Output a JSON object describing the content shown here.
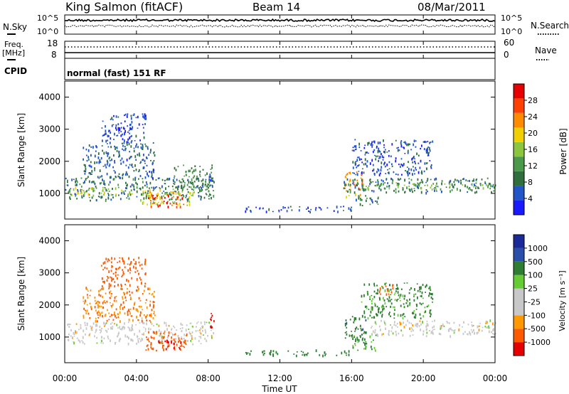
{
  "header": {
    "station": "King Salmon (fitACF)",
    "beam": "Beam 14",
    "date": "08/Mar/2011"
  },
  "status_panels": {
    "nsky_label": "N.Sky",
    "nsearch_label": "N.Search",
    "noise_ticks_left": [
      "10^5",
      "10^0"
    ],
    "noise_ticks_right": [
      "10^5",
      "10^0"
    ],
    "freq_label": "Freq.",
    "freq_unit": "[MHz]",
    "freq_ticks": [
      "18",
      "8"
    ],
    "nave_label": "Nave",
    "nave_ticks": [
      "60",
      "0"
    ],
    "cpid_label": "CPID",
    "cpid_value": "normal (fast) 151 RF"
  },
  "colors": {
    "power": [
      "#1a1aff",
      "#2255c8",
      "#2f6f3e",
      "#4a9a4a",
      "#8cc63f",
      "#f0d000",
      "#ff8c00",
      "#ff4000",
      "#e60000"
    ],
    "velocity": [
      "#e60000",
      "#ff5a00",
      "#ff9900",
      "#c8c8c8",
      "#c8c8c8",
      "#66cc33",
      "#2e7d32",
      "#2a4faa",
      "#1a2a99"
    ],
    "ground_scatter": "#c8c8c8"
  },
  "chart_data": [
    {
      "type": "heatmap",
      "panel": "power",
      "ylabel": "Slant Range [km]",
      "xlabel": "",
      "ylim": [
        200,
        4500
      ],
      "yticks": [
        "1000",
        "2000",
        "3000",
        "4000"
      ],
      "xticks": [
        "00:00",
        "04:00",
        "08:00",
        "12:00",
        "16:00",
        "20:00",
        "00:00"
      ],
      "colorbar": {
        "label": "Power [dB]",
        "ticks": [
          "4",
          "8",
          "12",
          "16",
          "20",
          "24",
          "28"
        ],
        "range": [
          0,
          30
        ]
      },
      "regions": [
        {
          "t0": 0.0,
          "t1": 8.3,
          "r0": 800,
          "r1": 1500,
          "level": 8
        },
        {
          "t0": 0.2,
          "t1": 3.8,
          "r0": 950,
          "r1": 1200,
          "level": 16
        },
        {
          "t0": 1.0,
          "t1": 5.0,
          "r0": 1500,
          "r1": 2600,
          "level": 6
        },
        {
          "t0": 2.0,
          "t1": 4.5,
          "r0": 2600,
          "r1": 3500,
          "level": 4
        },
        {
          "t0": 4.2,
          "t1": 7.2,
          "r0": 650,
          "r1": 1150,
          "level": 18
        },
        {
          "t0": 4.6,
          "t1": 6.6,
          "r0": 600,
          "r1": 1000,
          "level": 26
        },
        {
          "t0": 6.0,
          "t1": 8.2,
          "r0": 1100,
          "r1": 1900,
          "level": 10
        },
        {
          "t0": 8.0,
          "t1": 8.3,
          "r0": 1200,
          "r1": 1900,
          "level": 6
        },
        {
          "t0": 10.0,
          "t1": 16.0,
          "r0": 450,
          "r1": 620,
          "level": 5
        },
        {
          "t0": 15.6,
          "t1": 16.6,
          "r0": 900,
          "r1": 1700,
          "level": 22
        },
        {
          "t0": 15.5,
          "t1": 24.0,
          "r0": 1050,
          "r1": 1500,
          "level": 8
        },
        {
          "t0": 16.5,
          "t1": 24.0,
          "r0": 1150,
          "r1": 1350,
          "level": 13
        },
        {
          "t0": 16.0,
          "t1": 20.5,
          "r0": 1600,
          "r1": 2700,
          "level": 5
        },
        {
          "t0": 16.2,
          "t1": 17.5,
          "r0": 600,
          "r1": 950,
          "level": 9
        }
      ]
    },
    {
      "type": "heatmap",
      "panel": "velocity",
      "ylabel": "Slant Range [km]",
      "xlabel": "Time UT",
      "ylim": [
        200,
        4500
      ],
      "yticks": [
        "1000",
        "2000",
        "3000",
        "4000"
      ],
      "xticks": [
        "00:00",
        "04:00",
        "08:00",
        "12:00",
        "16:00",
        "20:00",
        "00:00"
      ],
      "colorbar": {
        "label": "Velocity [m s⁻¹]",
        "ticks": [
          "1000",
          "500",
          "100",
          "25",
          "-25",
          "-100",
          "-500",
          "-1000"
        ],
        "range": [
          -1000,
          1000
        ]
      },
      "regions": [
        {
          "t0": 0.0,
          "t1": 8.3,
          "r0": 800,
          "r1": 1500,
          "value": 0
        },
        {
          "t0": 1.0,
          "t1": 5.0,
          "r0": 1500,
          "r1": 2600,
          "value": -100
        },
        {
          "t0": 2.0,
          "t1": 4.5,
          "r0": 2600,
          "r1": 3500,
          "value": -150
        },
        {
          "t0": 4.5,
          "t1": 6.8,
          "r0": 600,
          "r1": 1200,
          "value": -300
        },
        {
          "t0": 5.0,
          "t1": 6.5,
          "r0": 650,
          "r1": 950,
          "value": -600
        },
        {
          "t0": 8.0,
          "t1": 8.3,
          "r0": 1200,
          "r1": 1800,
          "value": -700
        },
        {
          "t0": 10.0,
          "t1": 16.0,
          "r0": 450,
          "r1": 620,
          "value": 150
        },
        {
          "t0": 15.6,
          "t1": 16.8,
          "r0": 900,
          "r1": 1700,
          "value": 400
        },
        {
          "t0": 16.0,
          "t1": 17.5,
          "r0": 600,
          "r1": 1100,
          "value": 120
        },
        {
          "t0": 17.0,
          "t1": 24.0,
          "r0": 1050,
          "r1": 1550,
          "value": 0
        },
        {
          "t0": 16.5,
          "t1": 20.5,
          "r0": 1600,
          "r1": 2700,
          "value": 120
        },
        {
          "t0": 17.5,
          "t1": 18.3,
          "r0": 2300,
          "r1": 2650,
          "value": -200
        }
      ]
    }
  ]
}
